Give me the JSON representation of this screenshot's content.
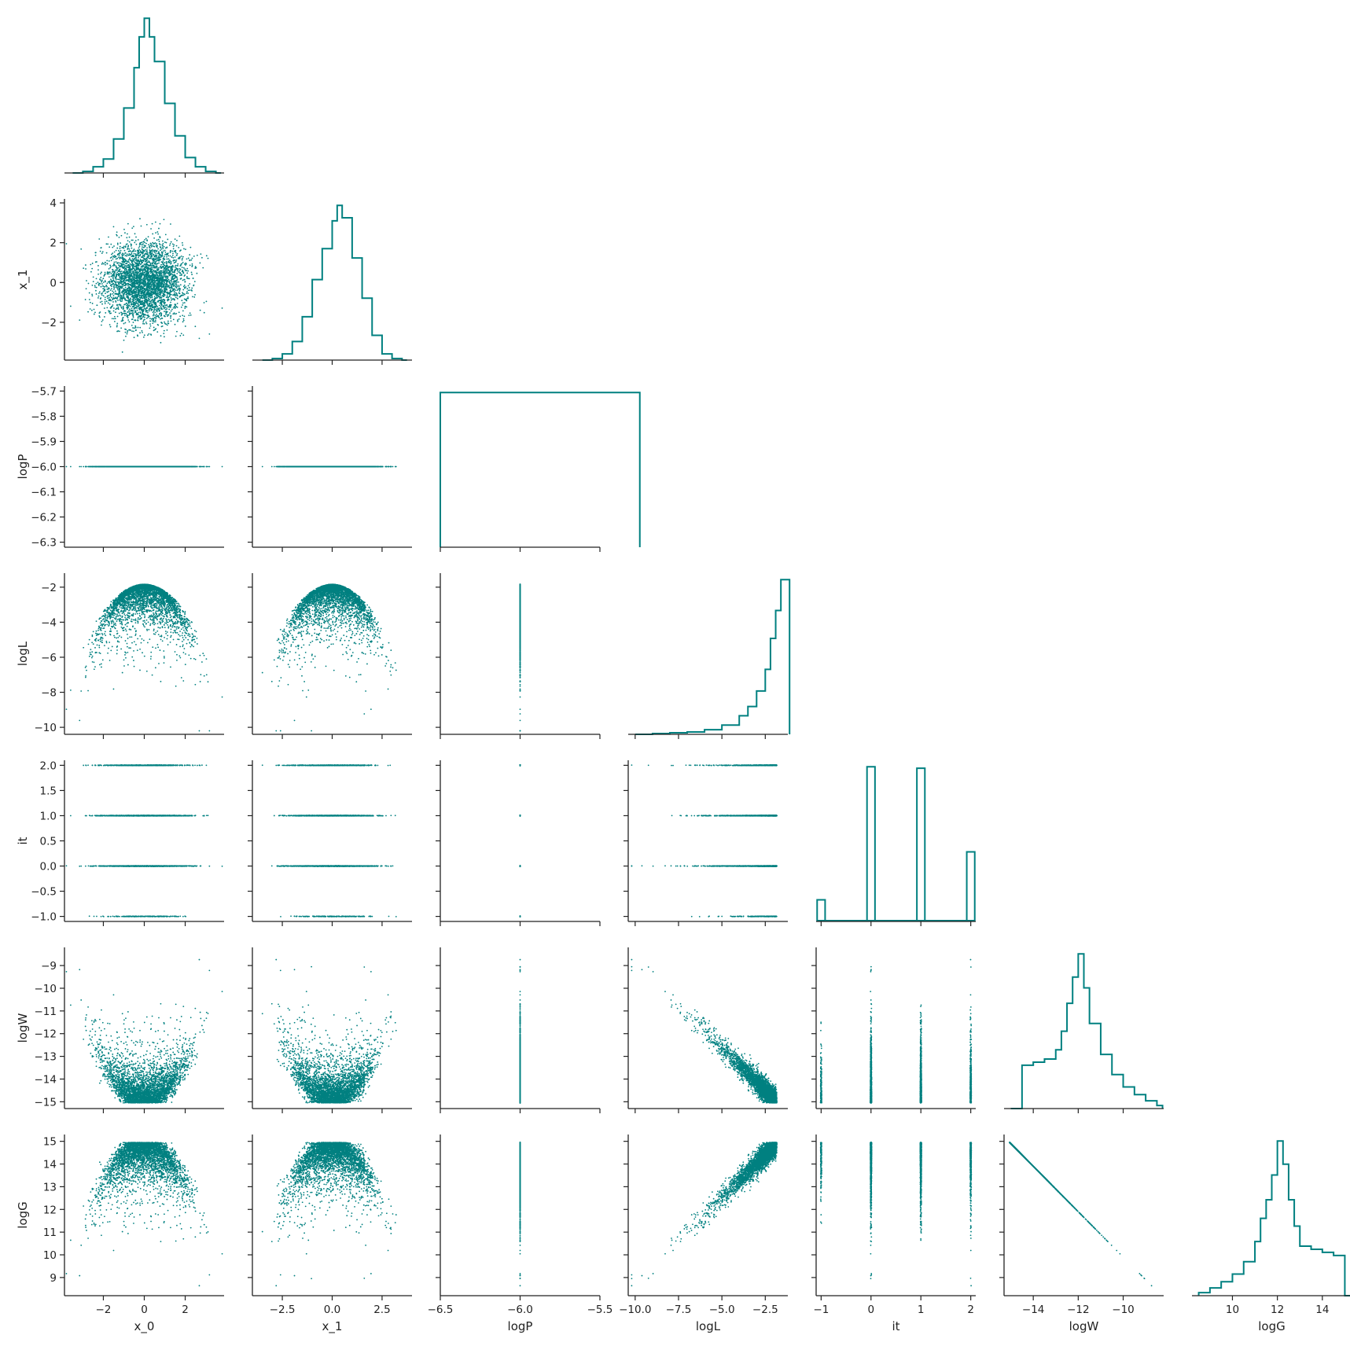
{
  "chart_data": {
    "type": "corner",
    "color": "#008080",
    "variables": [
      {
        "name": "x_0",
        "label": "x_0",
        "range": [
          -3.9,
          3.9
        ],
        "ticks": [
          -2,
          0,
          2
        ],
        "tick_labels": [
          "−2",
          "0",
          "2"
        ]
      },
      {
        "name": "x_1",
        "label": "x_1",
        "range": [
          -4.0,
          4.0
        ],
        "ticks": [
          -2.5,
          0,
          2.5
        ],
        "tick_labels": [
          "−2.5",
          "0.0",
          "2.5"
        ]
      },
      {
        "name": "logP",
        "label": "logP",
        "range": [
          -6.5,
          -5.5
        ],
        "ticks": [
          -6.5,
          -6.0,
          -5.5
        ],
        "tick_labels": [
          "−6.5",
          "−6.0",
          "−5.5"
        ]
      },
      {
        "name": "logL",
        "label": "logL",
        "range": [
          -10.4,
          -1.2
        ],
        "ticks": [
          -10,
          -7.5,
          -5,
          -2.5
        ],
        "tick_labels": [
          "−10.0",
          "−7.5",
          "−5.0",
          "−2.5"
        ]
      },
      {
        "name": "it",
        "label": "it",
        "range": [
          -1.1,
          2.1
        ],
        "ticks": [
          -1,
          0,
          1,
          2
        ],
        "tick_labels": [
          "−1",
          "0",
          "1",
          "2"
        ]
      },
      {
        "name": "logW",
        "label": "logW",
        "range": [
          -15.3,
          -8.2
        ],
        "ticks": [
          -14,
          -12,
          -10
        ],
        "tick_labels": [
          "−14",
          "−12",
          "−10"
        ]
      },
      {
        "name": "logG",
        "label": "logG",
        "range": [
          8.2,
          15.3
        ],
        "ticks": [
          10,
          12,
          14
        ],
        "tick_labels": [
          "10",
          "12",
          "14"
        ]
      }
    ],
    "row_axes": [
      null,
      {
        "range": [
          -3.9,
          4.2
        ],
        "ticks": [
          -2,
          0,
          2,
          4
        ],
        "tick_labels": [
          "−2",
          "0",
          "2",
          "4"
        ]
      },
      {
        "range": [
          -6.32,
          -5.68
        ],
        "ticks": [
          -6.3,
          -6.2,
          -6.1,
          -6.0,
          -5.9,
          -5.8,
          -5.7
        ],
        "tick_labels": [
          "−6.3",
          "−6.2",
          "−6.1",
          "−6.0",
          "−5.9",
          "−5.8",
          "−5.7"
        ]
      },
      {
        "range": [
          -10.4,
          -1.2
        ],
        "ticks": [
          -10,
          -8,
          -6,
          -4,
          -2
        ],
        "tick_labels": [
          "−10",
          "−8",
          "−6",
          "−4",
          "−2"
        ]
      },
      {
        "range": [
          -1.1,
          2.1
        ],
        "ticks": [
          -1,
          -0.5,
          0,
          0.5,
          1,
          1.5,
          2
        ],
        "tick_labels": [
          "−1.0",
          "−0.5",
          "0.0",
          "0.5",
          "1.0",
          "1.5",
          "2.0"
        ]
      },
      {
        "range": [
          -15.3,
          -8.2
        ],
        "ticks": [
          -15,
          -14,
          -13,
          -12,
          -11,
          -10,
          -9
        ],
        "tick_labels": [
          "−15",
          "−14",
          "−13",
          "−12",
          "−11",
          "−10",
          "−9"
        ]
      },
      {
        "range": [
          8.2,
          15.3
        ],
        "ticks": [
          9,
          10,
          11,
          12,
          13,
          14,
          15
        ],
        "tick_labels": [
          "9",
          "10",
          "11",
          "12",
          "13",
          "14",
          "15"
        ]
      }
    ],
    "histograms": [
      {
        "variable": "x_0",
        "x": [
          -3.5,
          -3.0,
          -2.5,
          -2.0,
          -1.5,
          -1.0,
          -0.5,
          -0.25,
          0.0,
          0.25,
          0.5,
          1.0,
          1.5,
          2.0,
          2.5,
          3.0,
          3.5
        ],
        "y": [
          0.0,
          0.01,
          0.04,
          0.09,
          0.22,
          0.42,
          0.68,
          0.88,
          1.0,
          0.88,
          0.72,
          0.45,
          0.24,
          0.1,
          0.04,
          0.01,
          0.0
        ]
      },
      {
        "variable": "x_1",
        "x": [
          -3.5,
          -3.0,
          -2.5,
          -2.0,
          -1.5,
          -1.0,
          -0.5,
          0.0,
          0.25,
          0.5,
          1.0,
          1.5,
          2.0,
          2.5,
          3.0,
          3.5
        ],
        "y": [
          0.0,
          0.01,
          0.04,
          0.12,
          0.28,
          0.52,
          0.72,
          0.9,
          1.0,
          0.92,
          0.66,
          0.4,
          0.16,
          0.04,
          0.01,
          0.0
        ]
      },
      {
        "variable": "logP",
        "x": [
          -6.5,
          -6.0,
          -5.5
        ],
        "y": [
          1.0,
          1.0,
          1.0
        ]
      },
      {
        "variable": "logL",
        "x": [
          -10.0,
          -9.0,
          -8.0,
          -7.0,
          -6.0,
          -5.0,
          -4.0,
          -3.5,
          -3.0,
          -2.5,
          -2.2,
          -1.9,
          -1.6
        ],
        "y": [
          0.0,
          0.005,
          0.01,
          0.015,
          0.03,
          0.06,
          0.12,
          0.18,
          0.28,
          0.42,
          0.62,
          0.8,
          1.0
        ]
      },
      {
        "variable": "it",
        "x": [
          -1,
          0,
          1,
          2
        ],
        "y": [
          0.14,
          1.0,
          0.99,
          0.45
        ]
      },
      {
        "variable": "logW",
        "x": [
          -15.0,
          -14.5,
          -14.0,
          -13.5,
          -13.0,
          -12.75,
          -12.5,
          -12.25,
          -12.0,
          -11.75,
          -11.5,
          -11.0,
          -10.5,
          -10.0,
          -9.5,
          -9.0,
          -8.5
        ],
        "y": [
          0.0,
          0.28,
          0.3,
          0.32,
          0.38,
          0.5,
          0.68,
          0.85,
          1.0,
          0.78,
          0.55,
          0.35,
          0.22,
          0.14,
          0.09,
          0.05,
          0.02
        ]
      },
      {
        "variable": "logG",
        "x": [
          8.5,
          9.0,
          9.5,
          10.0,
          10.5,
          11.0,
          11.25,
          11.5,
          11.75,
          12.0,
          12.25,
          12.5,
          12.75,
          13.0,
          13.5,
          14.0,
          14.5,
          15.0
        ],
        "y": [
          0.02,
          0.05,
          0.09,
          0.14,
          0.22,
          0.35,
          0.5,
          0.62,
          0.78,
          1.0,
          0.85,
          0.62,
          0.45,
          0.32,
          0.3,
          0.28,
          0.26,
          0.0
        ]
      }
    ]
  }
}
